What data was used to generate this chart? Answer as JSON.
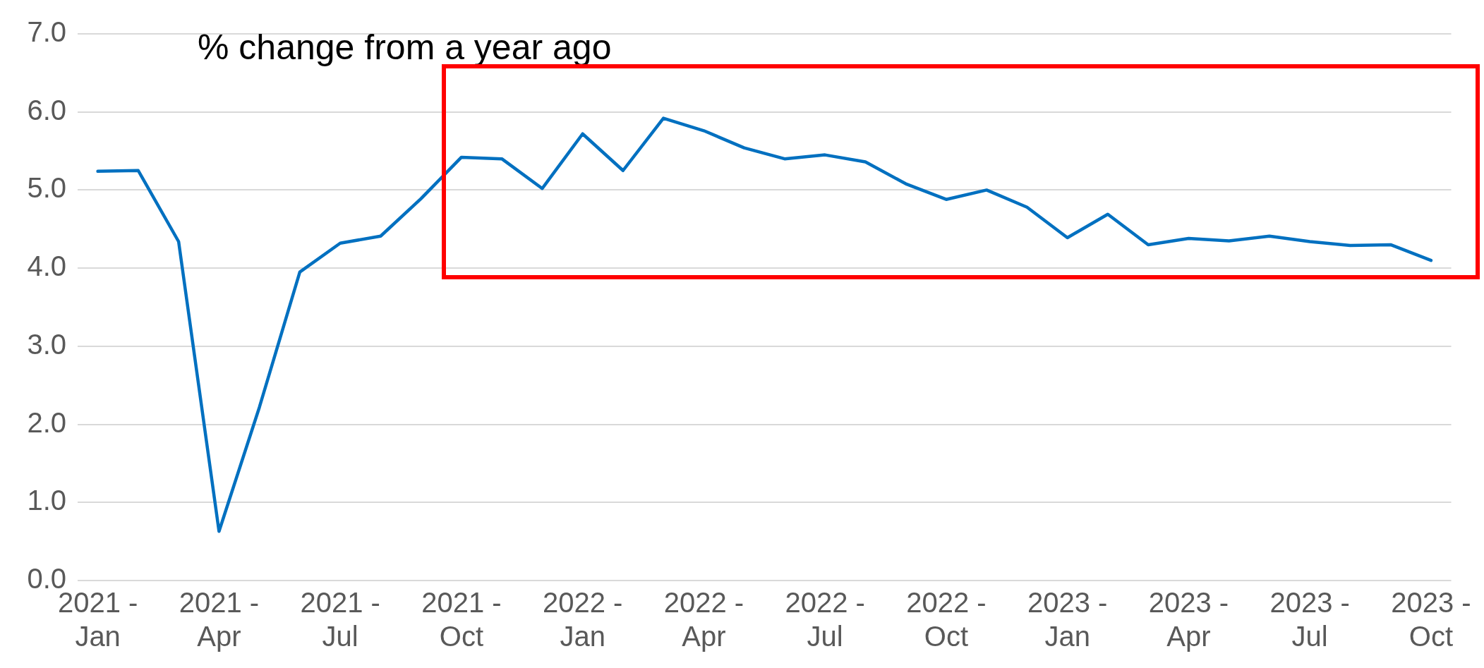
{
  "chart_data": {
    "type": "line",
    "title": "% change from a year ago",
    "categories": [
      "2021 -\nJan",
      null,
      null,
      "2021 -\nApr",
      null,
      null,
      "2021 -\nJul",
      null,
      null,
      "2021 -\nOct",
      null,
      null,
      "2022 -\nJan",
      null,
      null,
      "2022 -\nApr",
      null,
      null,
      "2022 -\nJul",
      null,
      null,
      "2022 -\nOct",
      null,
      null,
      "2023 -\nJan",
      null,
      null,
      "2023 -\nApr",
      null,
      null,
      "2023 -\nJul",
      null,
      null,
      "2023 -\nOct"
    ],
    "series": [
      {
        "color": "#0070c0",
        "values": [
          5.24,
          5.25,
          4.34,
          0.63,
          2.22,
          3.95,
          4.32,
          4.41,
          4.89,
          5.42,
          5.4,
          5.02,
          5.72,
          5.25,
          5.92,
          5.76,
          5.54,
          5.4,
          5.45,
          5.36,
          5.08,
          4.88,
          5.0,
          4.78,
          4.39,
          4.69,
          4.3,
          4.38,
          4.35,
          4.41,
          4.34,
          4.29,
          4.3,
          4.1
        ]
      }
    ],
    "ylim": [
      0,
      7
    ],
    "yticks": [
      {
        "value": 0,
        "label": "0.0"
      },
      {
        "value": 1,
        "label": "1.0"
      },
      {
        "value": 2,
        "label": "2.0"
      },
      {
        "value": 3,
        "label": "3.0"
      },
      {
        "value": 4,
        "label": "4.0"
      },
      {
        "value": 5,
        "label": "5.0"
      },
      {
        "value": 6,
        "label": "6.0"
      },
      {
        "value": 7,
        "label": "7.0"
      }
    ],
    "grid": "y",
    "marker": "none",
    "line_style": "solid"
  }
}
